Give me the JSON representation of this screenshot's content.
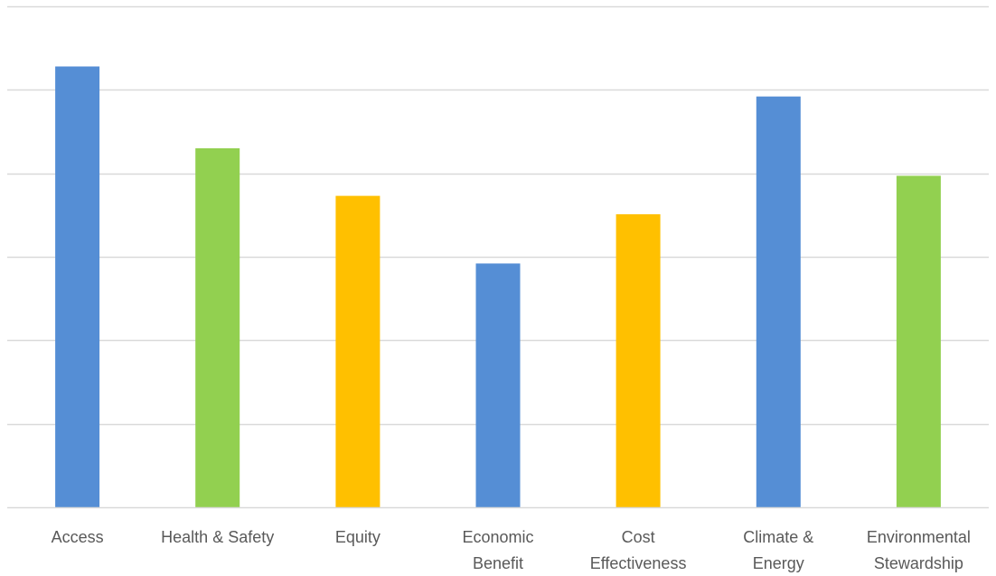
{
  "chart_data": {
    "type": "bar",
    "title": "",
    "xlabel": "",
    "ylabel": "",
    "ylim": [
      0,
      6
    ],
    "grid": true,
    "y_tick_labels_shown": false,
    "categories": [
      [
        "Access"
      ],
      [
        "Health & Safety"
      ],
      [
        "Equity"
      ],
      [
        "Economic",
        "Benefit"
      ],
      [
        "Cost",
        "Effectiveness"
      ],
      [
        "Climate &",
        "Energy"
      ],
      [
        "Environmental",
        "Stewardship"
      ]
    ],
    "values": [
      5.28,
      4.3,
      3.73,
      2.92,
      3.51,
      4.92,
      3.97
    ],
    "bar_colors": [
      "#558ed5",
      "#92d050",
      "#ffc000",
      "#558ed5",
      "#ffc000",
      "#558ed5",
      "#92d050"
    ],
    "gridline_color": "#d9d9d9",
    "label_color": "#595959"
  }
}
